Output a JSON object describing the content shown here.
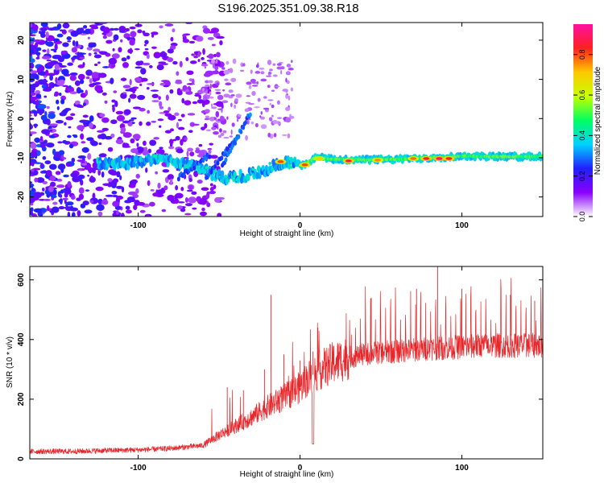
{
  "title": "S196.2025.351.09.38.R18",
  "chart_data": [
    {
      "type": "heatmap",
      "id": "spectrogram",
      "xlabel": "Height of straight line (km)",
      "ylabel": "Frequency (Hz)",
      "xlim": [
        -167,
        150
      ],
      "ylim": [
        -25,
        24.5
      ],
      "xticks": [
        -100,
        0,
        100
      ],
      "xtick_labels": [
        "-100",
        "0",
        "100"
      ],
      "yticks": [
        -20,
        -10,
        0,
        10,
        20
      ],
      "ytick_labels": [
        "-20",
        "-10",
        "0",
        "10",
        "20"
      ],
      "colorbar": {
        "label": "Normalized spectral amplitude",
        "range": [
          0.0,
          0.95
        ],
        "ticks": [
          0.0,
          0.2,
          0.4,
          0.6,
          0.8
        ],
        "tick_labels": [
          "0.0",
          "0.2",
          "0.4",
          "0.6",
          "0.8"
        ],
        "colormap": [
          "#ffffff",
          "#8a00ff",
          "#2020ff",
          "#00d2ff",
          "#00ff60",
          "#c8ff00",
          "#ffc800",
          "#ff2020",
          "#ff10a0"
        ]
      },
      "ridge": [
        {
          "x": -125,
          "f": -11.2
        },
        {
          "x": -110,
          "f": -11.5
        },
        {
          "x": -95,
          "f": -10.5
        },
        {
          "x": -80,
          "f": -11.0
        },
        {
          "x": -70,
          "f": -11.8
        },
        {
          "x": -60,
          "f": -13.0
        },
        {
          "x": -52,
          "f": -14.5
        },
        {
          "x": -45,
          "f": -15.2
        },
        {
          "x": -35,
          "f": -14.6
        },
        {
          "x": -25,
          "f": -13.8
        },
        {
          "x": -15,
          "f": -11.8
        },
        {
          "x": -8,
          "f": -11.2
        },
        {
          "x": 0,
          "f": -12.0
        },
        {
          "x": 6,
          "f": -11.0
        },
        {
          "x": 10,
          "f": -9.8
        },
        {
          "x": 20,
          "f": -10.4
        },
        {
          "x": 40,
          "f": -10.5
        },
        {
          "x": 60,
          "f": -10.4
        },
        {
          "x": 80,
          "f": -10.0
        },
        {
          "x": 100,
          "f": -9.6
        },
        {
          "x": 120,
          "f": -9.7
        },
        {
          "x": 150,
          "f": -9.7
        }
      ],
      "hotspots": [
        {
          "x": 12,
          "f": -10.2,
          "amp": 0.75
        },
        {
          "x": 30,
          "f": -10.8,
          "amp": 0.9
        },
        {
          "x": 48,
          "f": -10.6,
          "amp": 0.8
        },
        {
          "x": 70,
          "f": -10.2,
          "amp": 0.82
        },
        {
          "x": 78,
          "f": -10.2,
          "amp": 0.9
        },
        {
          "x": 86,
          "f": -10.2,
          "amp": 0.95
        },
        {
          "x": 92,
          "f": -10.2,
          "amp": 0.88
        },
        {
          "x": -12,
          "f": -11.0,
          "amp": 0.85
        },
        {
          "x": 3,
          "f": -11.8,
          "amp": 0.85
        }
      ]
    },
    {
      "type": "line",
      "id": "snr",
      "xlabel": "Height of straight line (km)",
      "ylabel": "SNR (10 * v/v)",
      "xlim": [
        -167,
        150
      ],
      "ylim": [
        0,
        645
      ],
      "xticks": [
        -100,
        0,
        100
      ],
      "xtick_labels": [
        "-100",
        "0",
        "100"
      ],
      "yticks": [
        0,
        200,
        400,
        600
      ],
      "ytick_labels": [
        "0",
        "200",
        "400",
        "600"
      ],
      "color": "#e8262a",
      "baseline_profile": [
        {
          "x": -167,
          "snr": 25
        },
        {
          "x": -140,
          "snr": 25
        },
        {
          "x": -120,
          "snr": 28
        },
        {
          "x": -100,
          "snr": 30
        },
        {
          "x": -80,
          "snr": 35
        },
        {
          "x": -60,
          "snr": 45
        },
        {
          "x": -50,
          "snr": 80
        },
        {
          "x": -40,
          "snr": 110
        },
        {
          "x": -30,
          "snr": 140
        },
        {
          "x": -20,
          "snr": 175
        },
        {
          "x": -10,
          "snr": 205
        },
        {
          "x": 0,
          "snr": 240
        },
        {
          "x": 5,
          "snr": 270
        },
        {
          "x": 10,
          "snr": 290
        },
        {
          "x": 20,
          "snr": 320
        },
        {
          "x": 30,
          "snr": 340
        },
        {
          "x": 45,
          "snr": 355
        },
        {
          "x": 60,
          "snr": 360
        },
        {
          "x": 80,
          "snr": 370
        },
        {
          "x": 100,
          "snr": 375
        },
        {
          "x": 120,
          "snr": 380
        },
        {
          "x": 150,
          "snr": 380
        }
      ],
      "spikes": [
        {
          "x": -45,
          "snr": 240
        },
        {
          "x": -35,
          "snr": 230
        },
        {
          "x": -22,
          "snr": 300
        },
        {
          "x": -18,
          "snr": 550
        },
        {
          "x": -10,
          "snr": 350
        },
        {
          "x": 0,
          "snr": 330
        },
        {
          "x": 8,
          "snr": 360
        },
        {
          "x": 11,
          "snr": 440
        },
        {
          "x": 44,
          "snr": 540
        },
        {
          "x": 72,
          "snr": 570
        },
        {
          "x": 85,
          "snr": 645
        },
        {
          "x": 100,
          "snr": 570
        },
        {
          "x": 130,
          "snr": 550
        },
        {
          "x": 145,
          "snr": 530
        }
      ],
      "dip": {
        "x": 8,
        "snr": 50
      }
    }
  ]
}
